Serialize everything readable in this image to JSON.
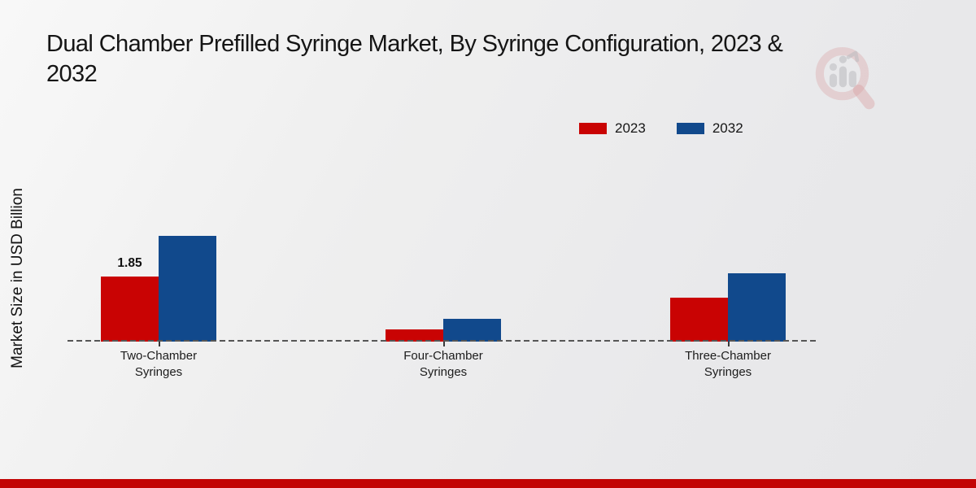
{
  "title": {
    "line1": "Dual Chamber Prefilled Syringe Market, By Syringe Configuration, 2023 &",
    "line2": "2032"
  },
  "chart_data": {
    "type": "bar",
    "title": "Dual Chamber Prefilled Syringe Market, By Syringe Configuration, 2023 & 2032",
    "categories": [
      "Two-Chamber Syringes",
      "Four-Chamber Syringes",
      "Three-Chamber Syringes"
    ],
    "series": [
      {
        "name": "2023",
        "color": "#c90303",
        "values": [
          1.85,
          0.35,
          1.25
        ]
      },
      {
        "name": "2032",
        "color": "#11498c",
        "values": [
          3.0,
          0.65,
          1.95
        ]
      }
    ],
    "value_labels": [
      {
        "category": "Two-Chamber Syringes",
        "series": "2023",
        "text": "1.85"
      }
    ],
    "xlabel": "",
    "ylabel": "Market Size in USD Billion",
    "ylim": [
      0,
      3.5
    ],
    "grid": false,
    "y_axis_ticks_visible": false,
    "baseline_style": "dashed",
    "legend_position": "top-right"
  },
  "footer": {
    "band_color": "#c20404"
  },
  "watermark": {
    "icon": "magnifier-bar-chart-logo"
  }
}
